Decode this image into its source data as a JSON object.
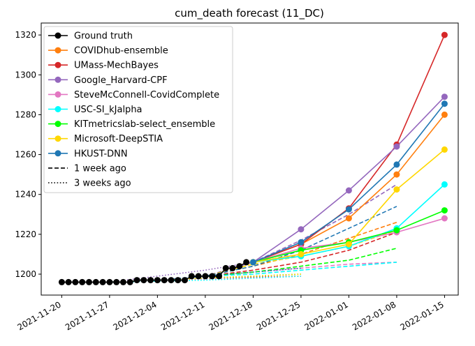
{
  "chart_data": {
    "type": "line",
    "title": "cum_death forecast (11_DC)",
    "xlabel": "",
    "ylabel": "",
    "xlim": [
      "2021-11-17",
      "2022-01-17"
    ],
    "ylim": [
      1189.5,
      1326
    ],
    "x_ticks": [
      "2021-11-20",
      "2021-11-27",
      "2021-12-04",
      "2021-12-11",
      "2021-12-18",
      "2021-12-25",
      "2022-01-01",
      "2022-01-08",
      "2022-01-15"
    ],
    "y_ticks": [
      1200,
      1220,
      1240,
      1260,
      1280,
      1300,
      1320
    ],
    "grid": false,
    "legend_position": "top-left",
    "ground_truth": {
      "name": "Ground truth",
      "color": "#000000",
      "x": [
        "2021-11-20",
        "2021-11-21",
        "2021-11-22",
        "2021-11-23",
        "2021-11-24",
        "2021-11-25",
        "2021-11-26",
        "2021-11-27",
        "2021-11-28",
        "2021-11-29",
        "2021-11-30",
        "2021-12-01",
        "2021-12-02",
        "2021-12-03",
        "2021-12-04",
        "2021-12-05",
        "2021-12-06",
        "2021-12-07",
        "2021-12-08",
        "2021-12-09",
        "2021-12-10",
        "2021-12-11",
        "2021-12-12",
        "2021-12-13",
        "2021-12-14",
        "2021-12-15",
        "2021-12-16",
        "2021-12-17"
      ],
      "y": [
        1196,
        1196,
        1196,
        1196,
        1196,
        1196,
        1196,
        1196,
        1196,
        1196,
        1196,
        1197,
        1197,
        1197,
        1197,
        1197,
        1197,
        1197,
        1197,
        1199,
        1199,
        1199,
        1199,
        1199,
        1203,
        1203,
        1204,
        1206
      ]
    },
    "forecast_x": [
      "2021-12-18",
      "2021-12-25",
      "2022-01-01",
      "2022-01-08",
      "2022-01-15"
    ],
    "series": [
      {
        "name": "COVIDhub-ensemble",
        "color": "#ff7f0e",
        "values": [
          1206,
          1215,
          1228,
          1250,
          1280
        ],
        "week1": {
          "x": [
            "2021-12-11",
            "2021-12-18",
            "2021-12-25",
            "2022-01-01",
            "2022-01-08"
          ],
          "y": [
            1199,
            1204,
            1210,
            1218,
            1226
          ]
        },
        "week3": {
          "x": [
            "2021-11-27",
            "2021-12-04",
            "2021-12-11",
            "2021-12-18",
            "2021-12-25"
          ],
          "y": [
            1196,
            1197,
            1198,
            1199,
            1200
          ]
        }
      },
      {
        "name": "UMass-MechBayes",
        "color": "#d62728",
        "values": [
          1206,
          1215,
          1233,
          1265,
          1320
        ],
        "week1": {
          "x": [
            "2021-12-11",
            "2021-12-18",
            "2021-12-25",
            "2022-01-01",
            "2022-01-08"
          ],
          "y": [
            1199,
            1202,
            1206,
            1212,
            1221
          ]
        },
        "week3": {
          "x": [
            "2021-11-27",
            "2021-12-04",
            "2021-12-11",
            "2021-12-18",
            "2021-12-25"
          ],
          "y": [
            1196,
            1197,
            1198,
            1198.5,
            1199
          ]
        }
      },
      {
        "name": "Google_Harvard-CPF",
        "color": "#9467bd",
        "values": [
          1206,
          1222.5,
          1242,
          1264,
          1289
        ],
        "week1": {
          "x": [
            "2021-12-11",
            "2021-12-18",
            "2021-12-25",
            "2022-01-01",
            "2022-01-08"
          ],
          "y": [
            1199,
            1206,
            1217,
            1230,
            1245
          ]
        },
        "week3": {
          "x": [
            "2021-11-27",
            "2021-12-04",
            "2021-12-11",
            "2021-12-18",
            "2021-12-25"
          ],
          "y": [
            1196,
            1199,
            1202,
            1206,
            1210
          ]
        }
      },
      {
        "name": "SteveMcConnell-CovidComplete",
        "color": "#e377c2",
        "values": [
          1206,
          1213,
          1216,
          1221,
          1228
        ],
        "week1": {
          "x": [
            "2021-12-11",
            "2021-12-18",
            "2021-12-25",
            "2022-01-01",
            "2022-01-08"
          ],
          "y": [
            1199,
            1201,
            1203,
            1205,
            1206
          ]
        },
        "week3": {
          "x": [
            "2021-11-27",
            "2021-12-04",
            "2021-12-11",
            "2021-12-18",
            "2021-12-25"
          ],
          "y": [
            1196,
            1197,
            1197.5,
            1198,
            1199
          ]
        }
      },
      {
        "name": "USC-SI_kJalpha",
        "color": "#00ffff",
        "values": [
          1206,
          1209,
          1214,
          1223,
          1245
        ],
        "week1": {
          "x": [
            "2021-12-11",
            "2021-12-18",
            "2021-12-25",
            "2022-01-01",
            "2022-01-08"
          ],
          "y": [
            1199,
            1200,
            1202,
            1204,
            1206
          ]
        },
        "week3": {
          "x": [
            "2021-11-27",
            "2021-12-04",
            "2021-12-11",
            "2021-12-18",
            "2021-12-25"
          ],
          "y": [
            1196,
            1196.5,
            1197,
            1198,
            1199
          ]
        }
      },
      {
        "name": "KITmetricslab-select_ensemble",
        "color": "#00ff00",
        "values": [
          1206,
          1212,
          1216,
          1222,
          1232
        ],
        "week1": {
          "x": [
            "2021-12-11",
            "2021-12-18",
            "2021-12-25",
            "2022-01-01",
            "2022-01-08"
          ],
          "y": [
            1199,
            1201,
            1204,
            1207,
            1213
          ]
        },
        "week3": {
          "x": [
            "2021-11-27",
            "2021-12-04",
            "2021-12-11",
            "2021-12-18",
            "2021-12-25"
          ],
          "y": [
            1196,
            1197,
            1198,
            1199,
            1200
          ]
        }
      },
      {
        "name": "Microsoft-DeepSTIA",
        "color": "#ffd700",
        "values": [
          1206,
          1210,
          1215,
          1242.5,
          1262.5
        ],
        "week1": {
          "x": [
            "2021-12-11",
            "2021-12-18",
            "2021-12-25",
            "2022-01-01",
            "2022-01-08"
          ],
          "y": [
            1199,
            1205,
            1209,
            1214,
            1222
          ]
        },
        "week3": {
          "x": [
            "2021-11-27",
            "2021-12-04",
            "2021-12-11",
            "2021-12-18",
            "2021-12-25"
          ],
          "y": [
            1196,
            1197,
            1198,
            1199,
            1200
          ]
        }
      },
      {
        "name": "HKUST-DNN",
        "color": "#1f77b4",
        "values": [
          1206,
          1216,
          1232.5,
          1255,
          1285.5
        ],
        "week1": {
          "x": [
            "2021-12-11",
            "2021-12-18",
            "2021-12-25",
            "2022-01-01",
            "2022-01-08"
          ],
          "y": [
            1199,
            1204,
            1212,
            1223,
            1234
          ]
        },
        "week3": {
          "x": [
            "2021-11-27",
            "2021-12-04",
            "2021-12-11",
            "2021-12-18",
            "2021-12-25"
          ],
          "y": [
            1196,
            1197,
            1199,
            1201,
            1203
          ]
        }
      }
    ],
    "legend_extra": [
      {
        "label": "1 week ago",
        "style": "dashed"
      },
      {
        "label": "3 weeks ago",
        "style": "dotted"
      }
    ]
  }
}
